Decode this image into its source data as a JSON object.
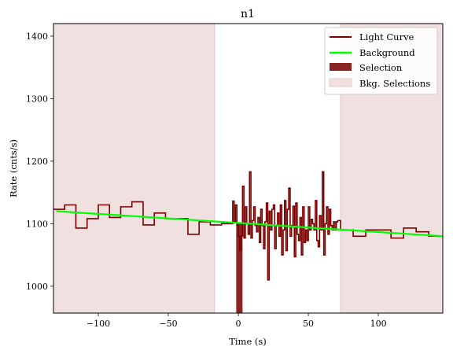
{
  "chart_data": {
    "type": "line",
    "title": "n1",
    "xlabel": "Time (s)",
    "ylabel": "Rate (cnts/s)",
    "xlim": [
      -132,
      146
    ],
    "ylim": [
      957,
      1420
    ],
    "xticks": [
      -100,
      -50,
      0,
      50,
      100
    ],
    "xtick_labels": [
      "−100",
      "−50",
      "0",
      "50",
      "100"
    ],
    "yticks": [
      1000,
      1100,
      1200,
      1300,
      1400
    ],
    "ytick_labels": [
      "1000",
      "1100",
      "1200",
      "1300",
      "1400"
    ],
    "grid": false,
    "legend_placement": "top-right",
    "legend": [
      "Light Curve",
      "Background",
      "Selection",
      "Bkg. Selections"
    ],
    "colors": {
      "light_curve": "#7a0000",
      "background": "#00ff00",
      "selection": "#8b2323",
      "bkg_selection": "#f0e0e0",
      "bkg_selection_edge": "#e0c4c4"
    },
    "bkg_selections": [
      [
        -132,
        -17
      ],
      [
        73,
        146
      ]
    ],
    "selection": {
      "x_start": -1.5,
      "x_end": 3,
      "value_low": 957,
      "value_high": 1100
    },
    "background_fit": {
      "x": [
        -130,
        146
      ],
      "y": [
        1120,
        1080
      ]
    },
    "light_curve": {
      "edges": [
        -132,
        -124,
        -116,
        -108,
        -100,
        -92,
        -84,
        -76,
        -68,
        -60,
        -52,
        -44,
        -36,
        -28,
        -20,
        -12,
        -4,
        -3,
        -2,
        -1,
        0,
        1,
        2,
        3,
        4,
        5,
        6,
        7,
        8,
        9,
        10,
        11,
        12,
        13,
        14,
        15,
        16,
        17,
        18,
        19,
        20,
        21,
        22,
        23,
        24,
        25,
        26,
        27,
        28,
        29,
        30,
        31,
        32,
        33,
        34,
        35,
        36,
        37,
        38,
        39,
        40,
        41,
        42,
        43,
        44,
        45,
        46,
        47,
        48,
        49,
        50,
        51,
        52,
        53,
        54,
        55,
        56,
        57,
        58,
        59,
        60,
        61,
        62,
        63,
        64,
        65,
        66,
        67,
        68,
        69,
        70,
        71,
        72,
        73,
        82,
        91,
        100,
        109,
        118,
        127,
        136,
        146
      ],
      "values": [
        1123,
        1130,
        1093,
        1108,
        1130,
        1110,
        1127,
        1135,
        1098,
        1117,
        1108,
        1108,
        1083,
        1103,
        1098,
        1100,
        1136,
        1103,
        1130,
        1097,
        1080,
        1057,
        1080,
        1160,
        1077,
        1127,
        1100,
        1083,
        1183,
        1077,
        1105,
        1127,
        1097,
        1087,
        1110,
        1070,
        1123,
        1097,
        1060,
        1103,
        1133,
        1010,
        1120,
        1090,
        1123,
        1130,
        1060,
        1097,
        1117,
        1080,
        1130,
        1050,
        1090,
        1137,
        1057,
        1123,
        1157,
        1080,
        1097,
        1128,
        1047,
        1133,
        1083,
        1073,
        1110,
        1050,
        1127,
        1070,
        1090,
        1073,
        1127,
        1090,
        1107,
        1100,
        1090,
        1137,
        1073,
        1063,
        1113,
        1090,
        1183,
        1050,
        1100,
        1127,
        1083,
        1123,
        1097,
        1090,
        1103,
        1090,
        1103,
        1105,
        1105,
        1090,
        1080,
        1090,
        1090,
        1077,
        1093,
        1087,
        1080
      ]
    }
  }
}
